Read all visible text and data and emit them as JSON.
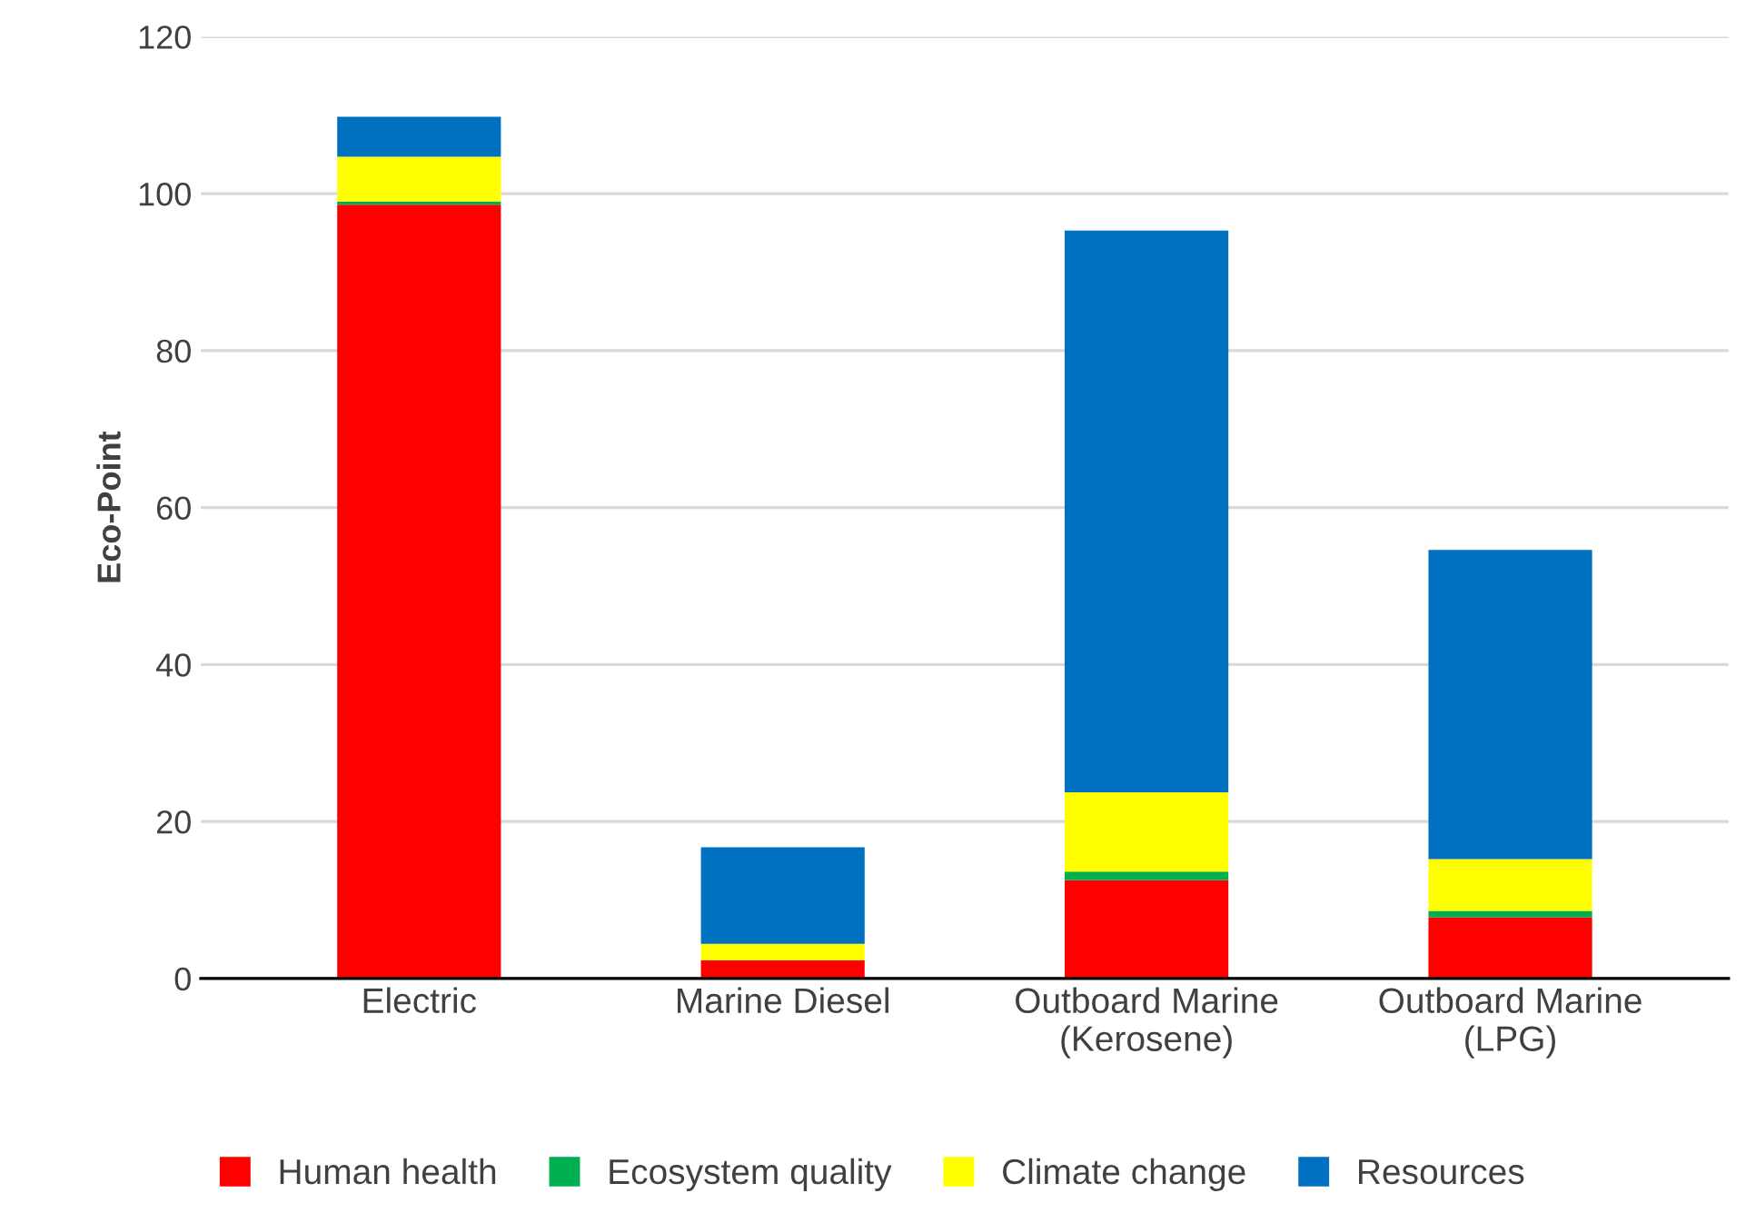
{
  "chart_data": {
    "type": "bar",
    "stacked": true,
    "ylabel": "Eco-Point",
    "categories": [
      "Electric",
      "Marine Diesel",
      "Outboard Marine\n(Kerosene)",
      "Outboard Marine\n(LPG)"
    ],
    "series": [
      {
        "name": "Human health",
        "color": "#ff0000",
        "values": [
          98.6,
          2.3,
          12.5,
          7.8
        ]
      },
      {
        "name": "Ecosystem quality",
        "color": "#00b050",
        "values": [
          0.4,
          0,
          1.1,
          0.8
        ]
      },
      {
        "name": "Climate change",
        "color": "#ffff00",
        "values": [
          5.7,
          2.1,
          10.1,
          6.6
        ]
      },
      {
        "name": "Resources",
        "color": "#0070c0",
        "values": [
          5.1,
          12.3,
          71.6,
          39.4
        ]
      }
    ],
    "ylim": [
      0,
      120
    ],
    "yticks": [
      0,
      20,
      40,
      60,
      80,
      100,
      120
    ],
    "grid": "y",
    "legend": "bottom"
  }
}
